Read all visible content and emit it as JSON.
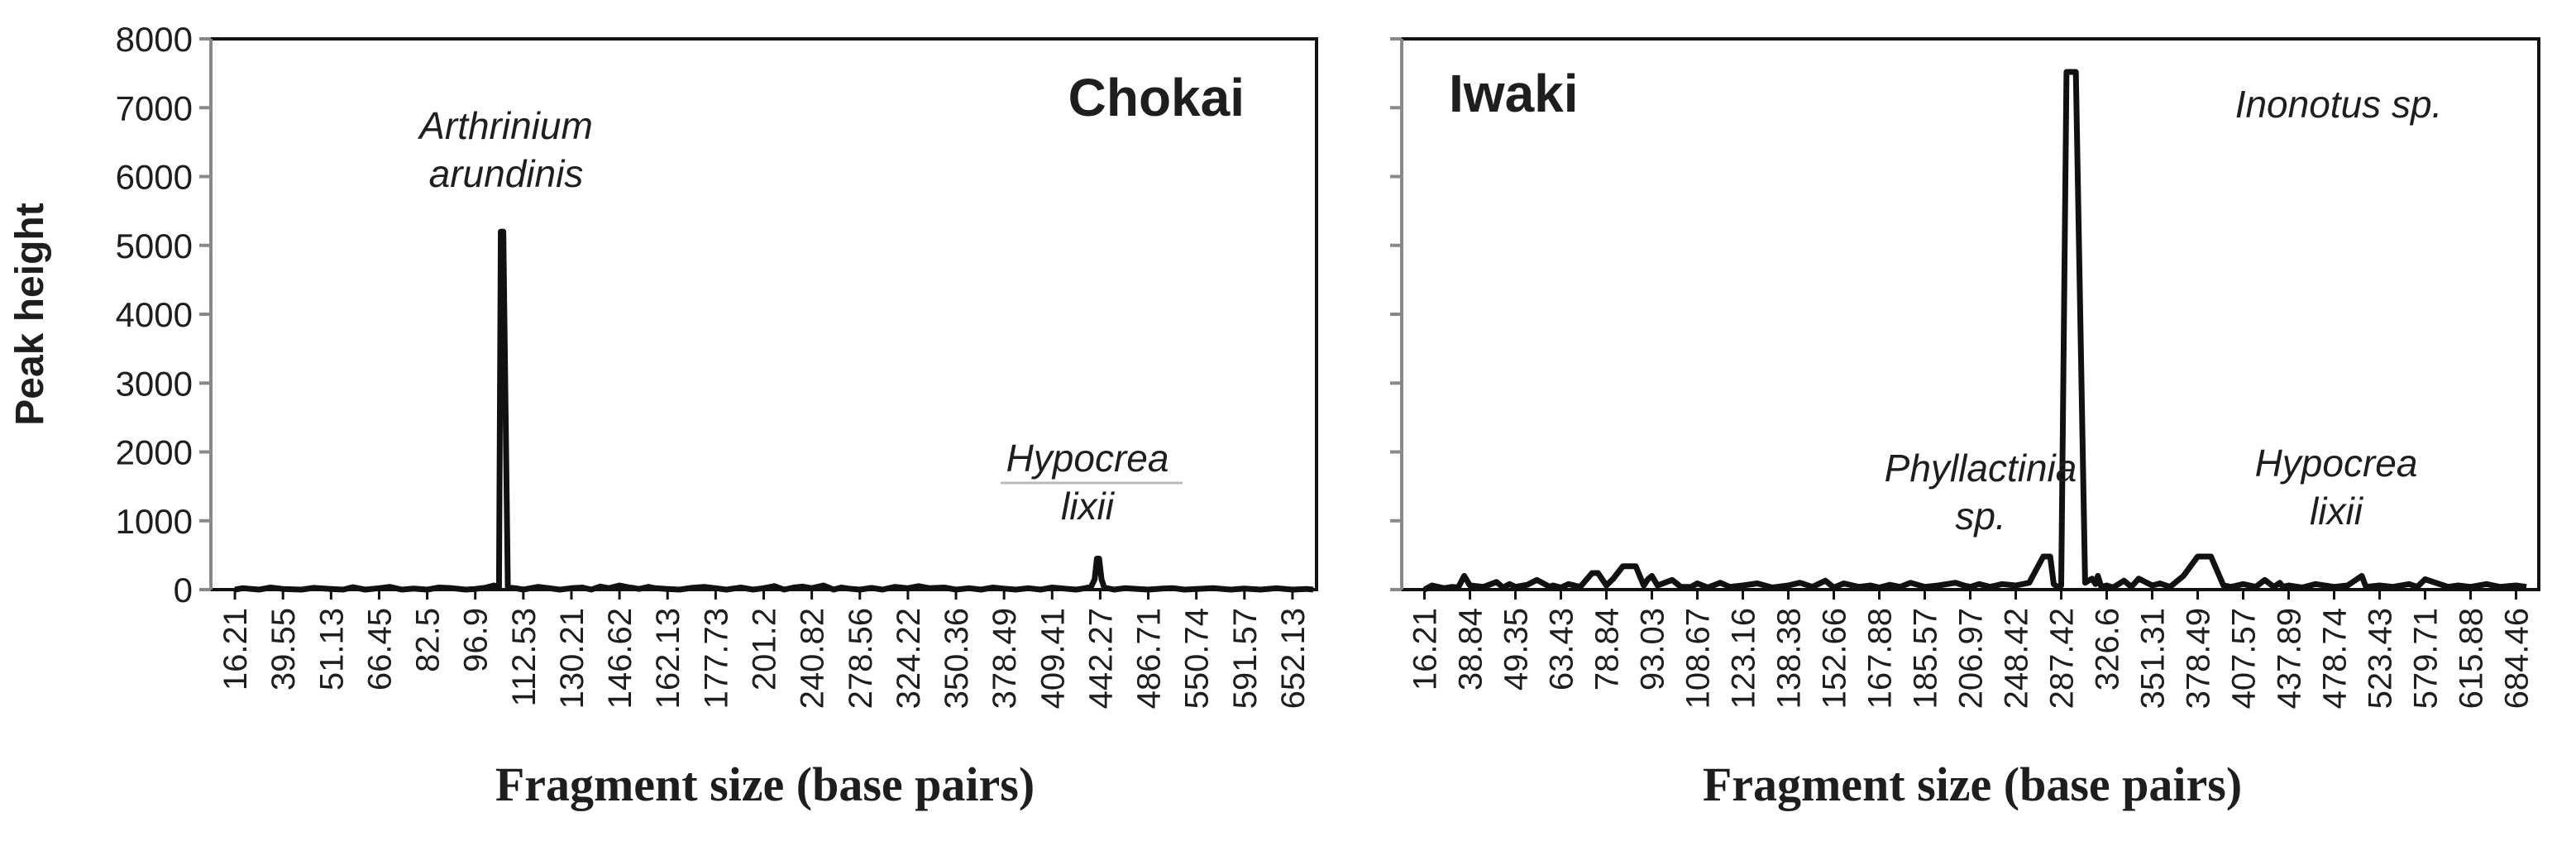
{
  "chart_data": [
    {
      "type": "line",
      "title": "Chokai",
      "xlabel": "Fragment size (base pairs)",
      "ylabel": "Peak height",
      "ylim": [
        0,
        8000
      ],
      "yticks": [
        0,
        1000,
        2000,
        3000,
        4000,
        5000,
        6000,
        7000,
        8000
      ],
      "xtick_labels": [
        "16.21",
        "39.55",
        "51.13",
        "66.45",
        "82.5",
        "96.9",
        "112.53",
        "130.21",
        "146.62",
        "162.13",
        "177.73",
        "201.2",
        "240.82",
        "278.56",
        "324.22",
        "350.36",
        "378.49",
        "409.41",
        "442.27",
        "486.71",
        "550.74",
        "591.57",
        "652.13"
      ],
      "grid": false,
      "legend": "none",
      "series": [
        {
          "x": [
            16.21,
            20.0,
            28.0,
            33.5,
            39.55,
            44.0,
            47.0,
            51.13,
            55.0,
            58.0,
            62.0,
            66.45,
            70.0,
            74.0,
            78.0,
            82.5,
            86.0,
            90.0,
            94.0,
            96.9,
            100.0,
            103.0,
            104.6,
            105.2,
            106.0,
            107.5,
            110.0,
            112.53,
            118.0,
            122.0,
            126.0,
            130.21,
            134.0,
            137.0,
            140.0,
            143.0,
            146.62,
            150.0,
            153.0,
            156.0,
            158.0,
            162.13,
            166.0,
            170.0,
            174.0,
            177.73,
            183.0,
            190.0,
            196.0,
            201.2,
            210.0,
            218.0,
            226.0,
            233.0,
            240.82,
            250.0,
            258.0,
            264.0,
            270.0,
            278.56,
            290.0,
            300.0,
            312.0,
            324.22,
            330.0,
            336.0,
            344.0,
            350.36,
            358.0,
            365.0,
            372.0,
            378.49,
            386.0,
            394.0,
            402.0,
            409.41,
            418.0,
            426.0,
            432.0,
            436.0,
            438.5,
            440.0,
            441.5,
            443.5,
            446.0,
            455.0,
            465.0,
            477.0,
            486.71,
            505.0,
            520.0,
            535.0,
            550.74,
            565.0,
            580.0,
            591.57,
            612.0,
            632.0,
            652.13,
            670.0,
            690.0
          ],
          "y": [
            0,
            20,
            0,
            30,
            10,
            0,
            25,
            10,
            0,
            35,
            0,
            20,
            40,
            0,
            15,
            0,
            30,
            20,
            0,
            10,
            25,
            60,
            20,
            5200,
            5200,
            30,
            20,
            0,
            40,
            20,
            0,
            20,
            30,
            0,
            45,
            20,
            60,
            30,
            10,
            40,
            20,
            10,
            0,
            25,
            40,
            20,
            0,
            30,
            0,
            20,
            50,
            0,
            30,
            45,
            20,
            60,
            0,
            30,
            15,
            0,
            25,
            0,
            40,
            20,
            50,
            20,
            30,
            0,
            20,
            0,
            30,
            15,
            0,
            20,
            0,
            30,
            15,
            0,
            20,
            40,
            150,
            450,
            450,
            150,
            30,
            0,
            20,
            10,
            0,
            15,
            20,
            0,
            10,
            20,
            0,
            15,
            0,
            20,
            0,
            10,
            0
          ]
        }
      ],
      "annotations": [
        {
          "text": [
            "Arthrinium",
            "arundinis"
          ],
          "x": 105.2,
          "y": 5200
        },
        {
          "text": [
            "Hypocrea",
            "lixii"
          ],
          "x": 440.0,
          "y": 450
        }
      ]
    },
    {
      "type": "line",
      "title": "Iwaki",
      "xlabel": "Fragment size (base pairs)",
      "ylabel": "",
      "ylim": [
        0,
        8000
      ],
      "yticks": [
        0,
        1000,
        2000,
        3000,
        4000,
        5000,
        6000,
        7000,
        8000
      ],
      "xtick_labels": [
        "16.21",
        "38.84",
        "49.35",
        "63.43",
        "78.84",
        "93.03",
        "108.67",
        "123.16",
        "138.38",
        "152.66",
        "167.88",
        "185.57",
        "206.97",
        "248.42",
        "287.42",
        "326.6",
        "351.31",
        "378.49",
        "407.57",
        "437.89",
        "478.74",
        "523.43",
        "579.71",
        "615.88",
        "684.46"
      ],
      "grid": false,
      "legend": "none",
      "series": [
        {
          "x": [
            16.21,
            20.0,
            26.0,
            30.0,
            33.0,
            36.0,
            38.84,
            42.0,
            45.0,
            46.5,
            48.0,
            49.35,
            53.0,
            56.0,
            60.0,
            61.0,
            63.43,
            66.0,
            70.0,
            74.0,
            76.0,
            78.84,
            81.0,
            84.0,
            88.0,
            90.5,
            91.8,
            93.03,
            95.0,
            100.0,
            103.0,
            106.5,
            108.67,
            112.0,
            116.0,
            119.0,
            123.16,
            128.0,
            133.0,
            138.38,
            142.0,
            146.0,
            150.0,
            152.66,
            156.0,
            161.0,
            165.0,
            167.88,
            172.0,
            176.0,
            180.0,
            185.57,
            192.0,
            200.0,
            204.0,
            206.97,
            215.0,
            225.0,
            236.0,
            248.42,
            260.0,
            272.0,
            278.0,
            281.0,
            284.0,
            287.42,
            292.0,
            300.0,
            308.0,
            314.0,
            317.0,
            319.0,
            320.5,
            322.0,
            326.6,
            330.0,
            336.0,
            340.0,
            344.0,
            351.31,
            356.0,
            362.0,
            370.0,
            378.49,
            387.0,
            395.0,
            400.0,
            407.57,
            416.0,
            422.0,
            428.0,
            432.0,
            434.0,
            437.89,
            450.0,
            462.0,
            478.74,
            492.0,
            506.0,
            510.0,
            523.43,
            540.0,
            560.0,
            570.0,
            579.71,
            598.0,
            606.0,
            615.88,
            640.0,
            660.0,
            684.46,
            700.0
          ],
          "y": [
            0,
            60,
            20,
            40,
            30,
            200,
            60,
            40,
            110,
            30,
            80,
            40,
            70,
            140,
            40,
            60,
            30,
            80,
            40,
            240,
            240,
            60,
            160,
            340,
            340,
            60,
            150,
            200,
            60,
            140,
            40,
            40,
            90,
            30,
            100,
            40,
            60,
            90,
            30,
            60,
            100,
            40,
            130,
            30,
            90,
            40,
            60,
            30,
            70,
            40,
            100,
            40,
            60,
            100,
            60,
            40,
            80,
            40,
            80,
            60,
            100,
            480,
            480,
            80,
            40,
            60,
            7520,
            7520,
            100,
            160,
            80,
            200,
            120,
            40,
            60,
            30,
            130,
            40,
            160,
            60,
            90,
            40,
            200,
            480,
            480,
            60,
            40,
            80,
            40,
            140,
            40,
            100,
            40,
            60,
            30,
            80,
            40,
            60,
            200,
            40,
            60,
            40,
            80,
            40,
            150,
            40,
            60,
            40,
            80,
            40,
            60,
            40
          ]
        }
      ],
      "annotations": [
        {
          "text": [
            "Inonotus sp."
          ],
          "x": 287.42,
          "y": 7520
        },
        {
          "text": [
            "Phyllactinia",
            "sp."
          ],
          "x": 272.0,
          "y": 480
        },
        {
          "text": [
            "Hypocrea",
            "lixii"
          ],
          "x": 395.0,
          "y": 480
        }
      ]
    }
  ]
}
